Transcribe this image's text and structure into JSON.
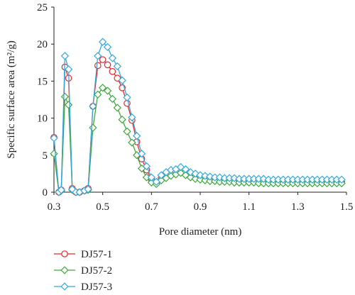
{
  "chart_data": {
    "type": "line",
    "title": "",
    "xlabel": "Pore diameter (nm)",
    "ylabel": "Specific surface area (m²/g)",
    "xlim": [
      0.3,
      1.5
    ],
    "ylim": [
      0,
      25
    ],
    "xticks": [
      "0.3",
      "0.5",
      "0.7",
      "0.9",
      "1.1",
      "1.3",
      "1.5"
    ],
    "yticks": [
      "0",
      "5",
      "10",
      "15",
      "20",
      "25"
    ],
    "grid": false,
    "legend_position": "bottom-left",
    "series": [
      {
        "name": "DJ57-1",
        "color": "#e8262b",
        "marker": "circle",
        "x": [
          0.3,
          0.32,
          0.33,
          0.345,
          0.36,
          0.375,
          0.39,
          0.405,
          0.425,
          0.44,
          0.46,
          0.48,
          0.5,
          0.52,
          0.54,
          0.56,
          0.58,
          0.6,
          0.62,
          0.64,
          0.66,
          0.68,
          0.7,
          0.72,
          0.74,
          0.76,
          0.78,
          0.8,
          0.82,
          0.84,
          0.86,
          0.88,
          0.9,
          0.92,
          0.94,
          0.96,
          0.98,
          1.0,
          1.02,
          1.04,
          1.06,
          1.08,
          1.1,
          1.12,
          1.14,
          1.16,
          1.18,
          1.2,
          1.22,
          1.24,
          1.26,
          1.28,
          1.3,
          1.32,
          1.34,
          1.36,
          1.38,
          1.4,
          1.42,
          1.44,
          1.46,
          1.48
        ],
        "values": [
          7.4,
          0.0,
          0.3,
          16.9,
          15.4,
          0.5,
          0.0,
          0.0,
          0.2,
          0.5,
          11.6,
          17.1,
          17.9,
          17.2,
          16.3,
          15.4,
          14.1,
          12.0,
          9.7,
          6.8,
          4.5,
          3.0,
          1.7,
          1.3,
          1.9,
          2.3,
          2.6,
          2.8,
          3.1,
          2.7,
          2.3,
          2.1,
          2.0,
          1.9,
          1.8,
          1.8,
          1.7,
          1.7,
          1.6,
          1.6,
          1.6,
          1.5,
          1.5,
          1.5,
          1.5,
          1.5,
          1.5,
          1.4,
          1.4,
          1.4,
          1.4,
          1.4,
          1.4,
          1.4,
          1.4,
          1.4,
          1.4,
          1.4,
          1.4,
          1.4,
          1.4,
          1.4
        ]
      },
      {
        "name": "DJ57-2",
        "color": "#3da93d",
        "marker": "diamond",
        "x": [
          0.3,
          0.32,
          0.33,
          0.345,
          0.36,
          0.375,
          0.39,
          0.405,
          0.425,
          0.44,
          0.46,
          0.48,
          0.5,
          0.52,
          0.54,
          0.56,
          0.58,
          0.6,
          0.62,
          0.64,
          0.66,
          0.68,
          0.7,
          0.72,
          0.74,
          0.76,
          0.78,
          0.8,
          0.82,
          0.84,
          0.86,
          0.88,
          0.9,
          0.92,
          0.94,
          0.96,
          0.98,
          1.0,
          1.02,
          1.04,
          1.06,
          1.08,
          1.1,
          1.12,
          1.14,
          1.16,
          1.18,
          1.2,
          1.22,
          1.24,
          1.26,
          1.28,
          1.3,
          1.32,
          1.34,
          1.36,
          1.38,
          1.4,
          1.42,
          1.44,
          1.46,
          1.48
        ],
        "values": [
          5.2,
          0.0,
          0.2,
          12.9,
          11.8,
          0.3,
          0.0,
          0.0,
          0.2,
          0.3,
          8.7,
          13.2,
          14.1,
          13.7,
          12.6,
          11.4,
          9.8,
          8.2,
          6.7,
          5.0,
          3.2,
          2.0,
          1.3,
          1.1,
          1.6,
          1.9,
          2.2,
          2.4,
          2.6,
          2.3,
          2.0,
          1.8,
          1.7,
          1.6,
          1.5,
          1.5,
          1.4,
          1.4,
          1.4,
          1.3,
          1.3,
          1.3,
          1.3,
          1.3,
          1.2,
          1.2,
          1.2,
          1.2,
          1.2,
          1.2,
          1.2,
          1.2,
          1.2,
          1.2,
          1.2,
          1.2,
          1.2,
          1.2,
          1.2,
          1.2,
          1.2,
          1.2
        ]
      },
      {
        "name": "DJ57-3",
        "color": "#33a8de",
        "marker": "diamond",
        "x": [
          0.3,
          0.32,
          0.33,
          0.345,
          0.36,
          0.375,
          0.39,
          0.405,
          0.425,
          0.44,
          0.46,
          0.48,
          0.5,
          0.52,
          0.54,
          0.56,
          0.58,
          0.6,
          0.62,
          0.64,
          0.66,
          0.68,
          0.7,
          0.72,
          0.74,
          0.76,
          0.78,
          0.8,
          0.82,
          0.84,
          0.86,
          0.88,
          0.9,
          0.92,
          0.94,
          0.96,
          0.98,
          1.0,
          1.02,
          1.04,
          1.06,
          1.08,
          1.1,
          1.12,
          1.14,
          1.16,
          1.18,
          1.2,
          1.22,
          1.24,
          1.26,
          1.28,
          1.3,
          1.32,
          1.34,
          1.36,
          1.38,
          1.4,
          1.42,
          1.44,
          1.46,
          1.48
        ],
        "values": [
          7.3,
          0.0,
          0.3,
          18.4,
          16.6,
          0.4,
          0.0,
          0.0,
          0.2,
          0.4,
          11.6,
          18.4,
          20.3,
          19.6,
          18.1,
          17.0,
          15.1,
          12.8,
          10.1,
          7.6,
          5.2,
          3.5,
          2.0,
          1.4,
          2.3,
          2.7,
          3.0,
          3.1,
          3.4,
          3.1,
          2.7,
          2.5,
          2.3,
          2.2,
          2.1,
          2.0,
          2.0,
          1.9,
          1.9,
          1.9,
          1.8,
          1.8,
          1.8,
          1.8,
          1.8,
          1.8,
          1.7,
          1.7,
          1.7,
          1.7,
          1.7,
          1.7,
          1.7,
          1.7,
          1.7,
          1.7,
          1.7,
          1.7,
          1.7,
          1.7,
          1.7,
          1.7
        ]
      }
    ]
  }
}
